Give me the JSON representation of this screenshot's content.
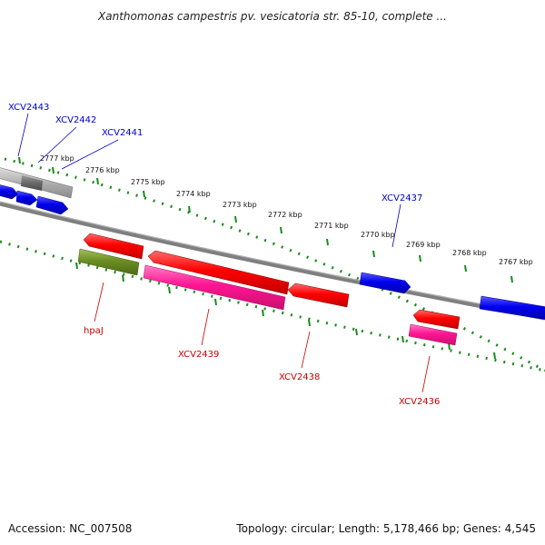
{
  "title": "Xanthomonas campestris pv. vesicatoria str. 85-10, complete ...",
  "footer": {
    "accession": "Accession: NC_007508",
    "summary": "Topology: circular; Length: 5,178,466 bp; Genes: 4,545"
  },
  "colors": {
    "dotted_track": "#1a8a1a",
    "backbone": "#7f7f7f",
    "plus_gene": "#1010e0",
    "minus_gene": "#e00000",
    "minus_pseudo": "#ff1493",
    "minus_olive": "#6b8e23",
    "plus_gray": "#a9a9a9",
    "plus_label": "#0000cc",
    "minus_label": "#cc0000"
  },
  "scale": {
    "unit": "kbp",
    "ticks": [
      "2777 kbp",
      "2776 kbp",
      "2775 kbp",
      "2774 kbp",
      "2773 kbp",
      "2772 kbp",
      "2771 kbp",
      "2770 kbp",
      "2769 kbp",
      "2768 kbp",
      "2767 kbp"
    ]
  },
  "genes": {
    "plus_strand": [
      "XCV2443",
      "XCV2442",
      "XCV2441",
      "XCV2437"
    ],
    "minus_strand": [
      "hpaJ",
      "XCV2439",
      "XCV2438",
      "XCV2436"
    ]
  }
}
